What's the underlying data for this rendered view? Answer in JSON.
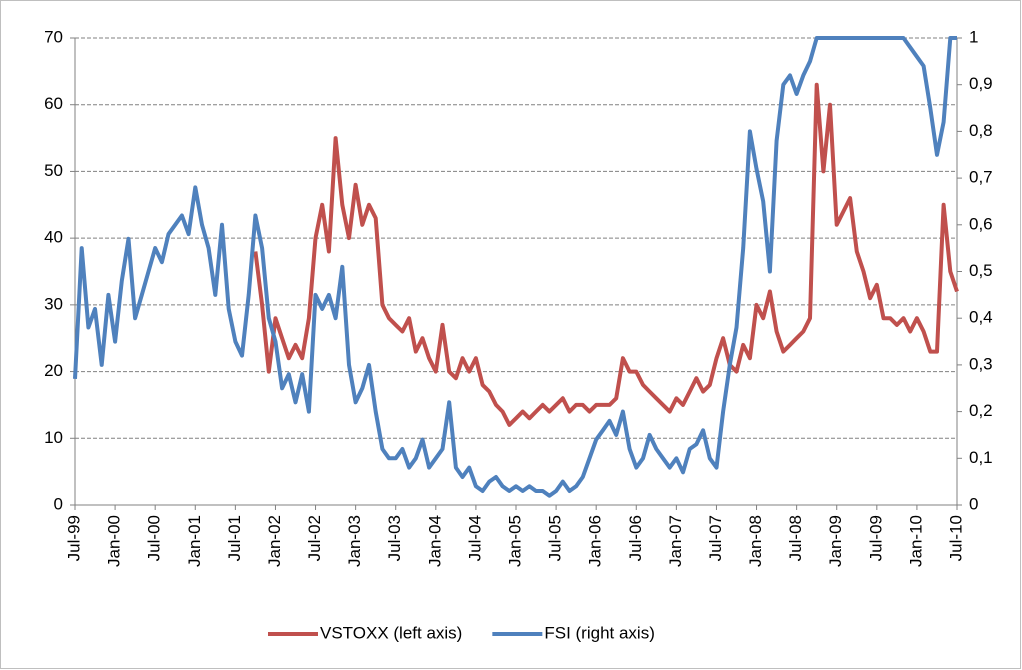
{
  "chart_data": {
    "type": "line",
    "categories": [
      "Jul-99",
      null,
      null,
      null,
      null,
      null,
      "Jan-00",
      null,
      null,
      null,
      null,
      null,
      "Jul-00",
      null,
      null,
      null,
      null,
      null,
      "Jan-01",
      null,
      null,
      null,
      null,
      null,
      "Jul-01",
      null,
      null,
      null,
      null,
      null,
      "Jan-02",
      null,
      null,
      null,
      null,
      null,
      "Jul-02",
      null,
      null,
      null,
      null,
      null,
      "Jan-03",
      null,
      null,
      null,
      null,
      null,
      "Jul-03",
      null,
      null,
      null,
      null,
      null,
      "Jan-04",
      null,
      null,
      null,
      null,
      null,
      "Jul-04",
      null,
      null,
      null,
      null,
      null,
      "Jan-05",
      null,
      null,
      null,
      null,
      null,
      "Jul-05",
      null,
      null,
      null,
      null,
      null,
      "Jan-06",
      null,
      null,
      null,
      null,
      null,
      "Jul-06",
      null,
      null,
      null,
      null,
      null,
      "Jan-07",
      null,
      null,
      null,
      null,
      null,
      "Jul-07",
      null,
      null,
      null,
      null,
      null,
      "Jan-08",
      null,
      null,
      null,
      null,
      null,
      "Jul-08",
      null,
      null,
      null,
      null,
      null,
      "Jan-09",
      null,
      null,
      null,
      null,
      null,
      "Jul-09",
      null,
      null,
      null,
      null,
      null,
      "Jan-10",
      null,
      null,
      null,
      null,
      null,
      "Jul-10"
    ],
    "series": [
      {
        "name": "VSTOXX (left axis)",
        "color": "#c0504d",
        "axis": "y",
        "values": [
          null,
          null,
          null,
          null,
          null,
          null,
          null,
          null,
          null,
          null,
          null,
          null,
          null,
          null,
          null,
          null,
          null,
          null,
          null,
          null,
          null,
          null,
          null,
          null,
          null,
          null,
          null,
          38,
          30,
          20,
          28,
          25,
          22,
          24,
          22,
          28,
          40,
          45,
          38,
          55,
          45,
          40,
          48,
          42,
          45,
          43,
          30,
          28,
          27,
          26,
          28,
          23,
          25,
          22,
          20,
          27,
          20,
          19,
          22,
          20,
          22,
          18,
          17,
          15,
          14,
          12,
          13,
          14,
          13,
          14,
          15,
          14,
          15,
          16,
          14,
          15,
          15,
          14,
          15,
          15,
          15,
          16,
          22,
          20,
          20,
          18,
          17,
          16,
          15,
          14,
          16,
          15,
          17,
          19,
          17,
          18,
          22,
          25,
          21,
          20,
          24,
          22,
          30,
          28,
          32,
          26,
          23,
          24,
          25,
          26,
          28,
          63,
          50,
          60,
          42,
          44,
          46,
          38,
          35,
          31,
          33,
          28,
          28,
          27,
          28,
          26,
          28,
          26,
          23,
          23,
          45,
          35,
          32
        ]
      },
      {
        "name": "FSI (right axis)",
        "color": "#4f81bd",
        "axis": "y2",
        "values": [
          0.27,
          0.55,
          0.38,
          0.42,
          0.3,
          0.45,
          0.35,
          0.48,
          0.57,
          0.4,
          0.45,
          0.5,
          0.55,
          0.52,
          0.58,
          0.6,
          0.62,
          0.58,
          0.68,
          0.6,
          0.55,
          0.45,
          0.6,
          0.42,
          0.35,
          0.32,
          0.45,
          0.62,
          0.55,
          0.4,
          0.35,
          0.25,
          0.28,
          0.22,
          0.28,
          0.2,
          0.45,
          0.42,
          0.45,
          0.4,
          0.51,
          0.3,
          0.22,
          0.25,
          0.3,
          0.2,
          0.12,
          0.1,
          0.1,
          0.12,
          0.08,
          0.1,
          0.14,
          0.08,
          0.1,
          0.12,
          0.22,
          0.08,
          0.06,
          0.08,
          0.04,
          0.03,
          0.05,
          0.06,
          0.04,
          0.03,
          0.04,
          0.03,
          0.04,
          0.03,
          0.03,
          0.02,
          0.03,
          0.05,
          0.03,
          0.04,
          0.06,
          0.1,
          0.14,
          0.16,
          0.18,
          0.15,
          0.2,
          0.12,
          0.08,
          0.1,
          0.15,
          0.12,
          0.1,
          0.08,
          0.1,
          0.07,
          0.12,
          0.13,
          0.16,
          0.1,
          0.08,
          0.2,
          0.3,
          0.38,
          0.55,
          0.8,
          0.72,
          0.65,
          0.5,
          0.78,
          0.9,
          0.92,
          0.88,
          0.92,
          0.95,
          1,
          1,
          1,
          1,
          1,
          1,
          1,
          1,
          1,
          1,
          1,
          1,
          1,
          1,
          0.98,
          0.96,
          0.94,
          0.85,
          0.75,
          0.82,
          1,
          1
        ]
      }
    ],
    "ylim": [
      0,
      70
    ],
    "yticks": [
      0,
      10,
      20,
      30,
      40,
      50,
      60,
      70
    ],
    "y2lim": [
      0,
      1
    ],
    "y2ticks": [
      0,
      {
        "value": 0.1,
        "label": "0,1"
      },
      {
        "value": 0.2,
        "label": "0,2"
      },
      {
        "value": 0.3,
        "label": "0,3"
      },
      {
        "value": 0.4,
        "label": "0,4"
      },
      {
        "value": 0.5,
        "label": "0,5"
      },
      {
        "value": 0.6,
        "label": "0,6"
      },
      {
        "value": 0.7,
        "label": "0,7"
      },
      {
        "value": 0.8,
        "label": "0,8"
      },
      {
        "value": 0.9,
        "label": "0,9"
      },
      1
    ],
    "grid": true,
    "legend": "bottom"
  }
}
